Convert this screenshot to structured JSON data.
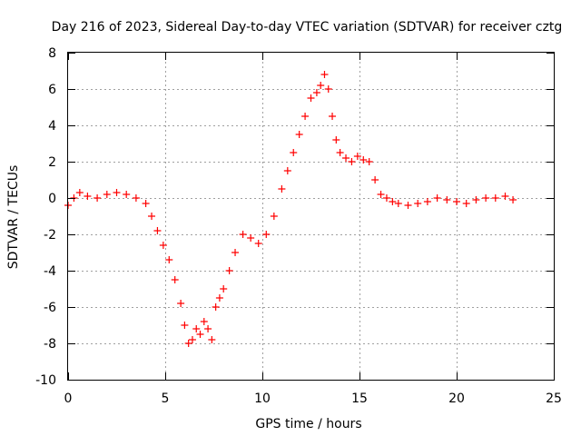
{
  "chart_data": {
    "type": "scatter",
    "title": "Day 216 of 2023, Sidereal Day-to-day VTEC variation (SDTVAR) for receiver cztg",
    "xlabel": "GPS time / hours",
    "ylabel": "SDTVAR / TECUs",
    "xlim": [
      0,
      25
    ],
    "ylim": [
      -10,
      8
    ],
    "xticks": [
      0,
      5,
      10,
      15,
      20,
      25
    ],
    "yticks": [
      -10,
      -8,
      -6,
      -4,
      -2,
      0,
      2,
      4,
      6,
      8
    ],
    "grid": true,
    "marker": "+",
    "color": "#ff0000",
    "series": [
      {
        "name": "SDTVAR",
        "x": [
          0.0,
          0.3,
          0.6,
          1.0,
          1.5,
          2.0,
          2.5,
          3.0,
          3.5,
          4.0,
          4.3,
          4.6,
          4.9,
          5.2,
          5.5,
          5.8,
          6.0,
          6.2,
          6.4,
          6.6,
          6.8,
          7.0,
          7.2,
          7.4,
          7.6,
          7.8,
          8.0,
          8.3,
          8.6,
          9.0,
          9.4,
          9.8,
          10.2,
          10.6,
          11.0,
          11.3,
          11.6,
          11.9,
          12.2,
          12.5,
          12.8,
          13.0,
          13.2,
          13.4,
          13.6,
          13.8,
          14.0,
          14.3,
          14.6,
          14.9,
          15.2,
          15.5,
          15.8,
          16.1,
          16.4,
          16.7,
          17.0,
          17.5,
          18.0,
          18.5,
          19.0,
          19.5,
          20.0,
          20.5,
          21.0,
          21.5,
          22.0,
          22.5,
          22.9
        ],
        "y": [
          -0.4,
          0.0,
          0.3,
          0.1,
          0.0,
          0.2,
          0.3,
          0.2,
          0.0,
          -0.3,
          -1.0,
          -1.8,
          -2.6,
          -3.4,
          -4.5,
          -5.8,
          -7.0,
          -8.0,
          -7.8,
          -7.2,
          -7.5,
          -6.8,
          -7.2,
          -7.8,
          -6.0,
          -5.5,
          -5.0,
          -4.0,
          -3.0,
          -2.0,
          -2.2,
          -2.5,
          -2.0,
          -1.0,
          0.5,
          1.5,
          2.5,
          3.5,
          4.5,
          5.5,
          5.8,
          6.2,
          6.8,
          6.0,
          4.5,
          3.2,
          2.5,
          2.2,
          2.0,
          2.3,
          2.1,
          2.0,
          1.0,
          0.2,
          0.0,
          -0.2,
          -0.3,
          -0.4,
          -0.3,
          -0.2,
          0.0,
          -0.1,
          -0.2,
          -0.3,
          -0.1,
          0.0,
          0.0,
          0.1,
          -0.1
        ]
      }
    ]
  }
}
